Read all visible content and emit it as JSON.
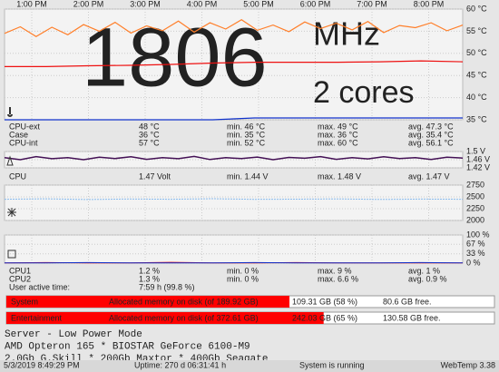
{
  "time_axis": [
    "1:00 PM",
    "2:00 PM",
    "3:00 PM",
    "4:00 PM",
    "5:00 PM",
    "6:00 PM",
    "7:00 PM",
    "8:00 PM"
  ],
  "temperature": {
    "watermark": [
      "1806",
      "MHz",
      "2 cores"
    ],
    "ylim": [
      35,
      60
    ],
    "yticks": [
      {
        "value": 60,
        "label": "60 °C"
      },
      {
        "value": 55,
        "label": "55 °C"
      },
      {
        "value": 50,
        "label": "50 °C"
      },
      {
        "value": 45,
        "label": "45 °C"
      },
      {
        "value": 40,
        "label": "40 °C"
      },
      {
        "value": 35,
        "label": "35 °C"
      }
    ],
    "series": [
      {
        "name": "CPU-ext",
        "color": "#ee1111",
        "values": [
          47,
          47,
          47.2,
          47.3,
          47.5,
          47.8,
          48,
          48,
          48,
          48.1,
          48.3,
          48.1
        ]
      },
      {
        "name": "Case",
        "color": "#1133cc",
        "values": [
          35,
          35,
          35,
          35,
          35,
          35,
          35.4,
          35.4,
          35.4,
          35.4,
          35.4,
          35.4
        ]
      },
      {
        "name": "CPU-int",
        "color": "#ff7f2a",
        "values": [
          54.5,
          56,
          53.8,
          55.9,
          54.2,
          56.5,
          55,
          57,
          54.6,
          56.2,
          55.1,
          57.3,
          54.8,
          56.9,
          55.5,
          57.6,
          55.2,
          56.4,
          54.9,
          57.1,
          55.6,
          56.8,
          55.3,
          57.2,
          54.7,
          56.3,
          55.8,
          56.9,
          55.1,
          56.4
        ]
      }
    ],
    "rows": [
      {
        "current": "48 °C",
        "min": "min. 46 °C",
        "max": "max. 49 °C",
        "avg": "avg. 47.3 °C"
      },
      {
        "current": "36 °C",
        "min": "min. 35 °C",
        "max": "max. 36 °C",
        "avg": "avg. 35.4 °C"
      },
      {
        "current": "57 °C",
        "min": "min. 52 °C",
        "max": "max. 60 °C",
        "avg": "avg. 56.1 °C"
      }
    ]
  },
  "voltage": {
    "ylim": [
      1.42,
      1.5
    ],
    "yticks": [
      {
        "value": 1.5,
        "label": "1.5 V"
      },
      {
        "value": 1.46,
        "label": "1.46 V"
      },
      {
        "value": 1.42,
        "label": "1.42 V"
      }
    ],
    "series": [
      {
        "name": "CPU",
        "color": "#441155",
        "values": [
          1.47,
          1.46,
          1.475,
          1.465,
          1.47,
          1.46,
          1.472,
          1.466,
          1.474,
          1.462,
          1.47,
          1.465,
          1.476,
          1.461,
          1.47,
          1.466,
          1.473,
          1.46,
          1.471,
          1.467,
          1.475,
          1.462,
          1.47,
          1.464,
          1.474,
          1.466,
          1.47,
          1.461,
          1.472,
          1.468
        ]
      }
    ],
    "rows": [
      {
        "current": "1.47 Volt",
        "min": "min. 1.44 V",
        "max": "max. 1.48 V",
        "avg": "avg. 1.47 V"
      }
    ]
  },
  "fan": {
    "ylim": [
      2000,
      2750
    ],
    "yticks": [
      2750,
      2500,
      2250,
      2000
    ],
    "series": [
      {
        "color": "#88bbee",
        "values": [
          2450,
          2460,
          2445,
          2455,
          2450,
          2462,
          2448,
          2452,
          2458,
          2446,
          2454,
          2450
        ]
      }
    ]
  },
  "cpu_usage": {
    "ylim": [
      0,
      100
    ],
    "yticks": [
      {
        "value": 100,
        "label": "100 %"
      },
      {
        "value": 67,
        "label": "67 %"
      },
      {
        "value": 33,
        "label": "33 %"
      },
      {
        "value": 0,
        "label": "0 %"
      }
    ],
    "series": [
      {
        "name": "CPU1",
        "color": "#ee1111",
        "values": [
          1,
          2,
          1,
          1,
          3,
          1,
          1,
          2,
          1,
          1,
          1,
          1
        ]
      },
      {
        "name": "CPU2",
        "color": "#1133cc",
        "values": [
          1,
          1,
          2,
          1,
          1,
          1,
          2,
          1,
          1,
          1,
          2,
          1
        ]
      }
    ],
    "rows": [
      {
        "current": "1.2 %",
        "min": "min. 0 %",
        "max": "max. 9 %",
        "avg": "avg. 1 %"
      },
      {
        "current": "1.3 %",
        "min": "min. 0 %",
        "max": "max. 6.6 %",
        "avg": "avg. 0.9 %"
      }
    ],
    "active_label": "User active time:",
    "active_value": "7:59 h (99.8 %)"
  },
  "disks": [
    {
      "name": "System",
      "caption": "Allocated memory on disk (of 189.92 GB)",
      "percent": 58,
      "used": "109.31 GB (58 %)",
      "free": "80.6 GB free."
    },
    {
      "name": "Entertainment",
      "caption": "Allocated memory on disk (of 372.61 GB)",
      "percent": 65,
      "used": "242.03 GB (65 %)",
      "free": "130.58 GB free."
    }
  ],
  "info": [
    "Server - Low Power Mode",
    "AMD Opteron 165 * BIOSTAR GeForce 6100-M9",
    "2.0Gb G.Skill * 200Gb Maxtor * 400Gb Seagate"
  ],
  "footer": {
    "date": "5/3/2019 8:49:29 PM",
    "uptime": "Uptime: 270 d 06:31:41 h",
    "status": "System is running",
    "app": "WebTemp 3.38"
  }
}
